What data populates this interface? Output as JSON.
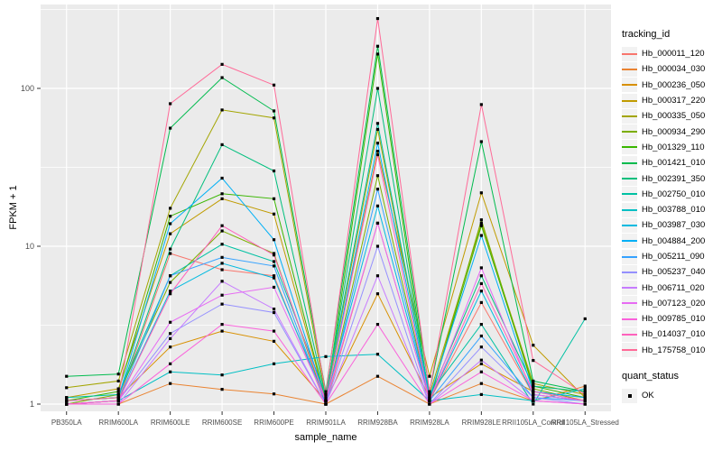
{
  "figure": {
    "background": "#FFFFFF",
    "panel_background": "#EBEBEB",
    "gridline_color": "#FFFFFF",
    "axis_text_color": "#4D4D4D",
    "tick_color": "#333333",
    "point_color": "#000000"
  },
  "axes": {
    "x_title": "sample_name",
    "y_title": "FPKM + 1",
    "y_tick_labels": [
      "1",
      "10",
      "100"
    ]
  },
  "legend": {
    "tracking_title": "tracking_id",
    "quant_title": "quant_status",
    "quant_items": [
      {
        "label": "OK"
      }
    ]
  },
  "chart_data": {
    "type": "line",
    "title": "",
    "xlabel": "sample_name",
    "ylabel": "FPKM + 1",
    "y_scale": "log10",
    "y_ticks": [
      1,
      10,
      100
    ],
    "y_minor_ticks": [
      3.1623,
      31.623,
      316.23
    ],
    "ylim": [
      1,
      339
    ],
    "grid": true,
    "legend_position": "right",
    "point_shape": "black-square",
    "categories": [
      "PB350LA",
      "RRIM600LA",
      "RRIM600LE",
      "RRIM600SE",
      "RRIM600PE",
      "RRIM901LA",
      "RRIM928BA",
      "RRIM928LA",
      "RRIM928LE",
      "RRII105LA_Control",
      "RRII105LA_Stressed"
    ],
    "series": [
      {
        "name": "Hb_000011_120",
        "color": "#F8766D",
        "values": [
          1.0,
          1.05,
          9.0,
          7.1,
          6.5,
          1.0,
          14,
          1.05,
          4.4,
          1.15,
          1.05
        ]
      },
      {
        "name": "Hb_000034_030",
        "color": "#EA8331",
        "values": [
          1.0,
          1.0,
          1.35,
          1.24,
          1.16,
          1.0,
          1.5,
          1.0,
          1.35,
          1.05,
          1.3
        ]
      },
      {
        "name": "Hb_000236_050",
        "color": "#D89000",
        "values": [
          1.05,
          1.1,
          2.3,
          2.9,
          2.5,
          1.05,
          5.0,
          1.1,
          1.8,
          1.2,
          1.1
        ]
      },
      {
        "name": "Hb_000317_220",
        "color": "#C09B00",
        "values": [
          1.1,
          1.25,
          12.0,
          20.0,
          16.0,
          1.05,
          40,
          1.5,
          21.8,
          2.36,
          1.1
        ]
      },
      {
        "name": "Hb_000335_050",
        "color": "#A3A500",
        "values": [
          1.27,
          1.4,
          17.4,
          73,
          65,
          1.1,
          55,
          1.15,
          14.0,
          1.35,
          1.15
        ]
      },
      {
        "name": "Hb_000934_290",
        "color": "#7CAE00",
        "values": [
          1.0,
          1.15,
          5.9,
          12.5,
          9.0,
          1.0,
          28,
          1.05,
          14.7,
          1.25,
          1.05
        ]
      },
      {
        "name": "Hb_001329_110",
        "color": "#39B600",
        "values": [
          1.05,
          1.2,
          15.5,
          21.5,
          20.0,
          1.05,
          165,
          1.05,
          13.5,
          1.3,
          1.1
        ]
      },
      {
        "name": "Hb_001421_010",
        "color": "#00BB4E",
        "values": [
          1.5,
          1.55,
          56,
          117,
          72,
          1.2,
          185,
          1.2,
          46,
          1.4,
          1.2
        ]
      },
      {
        "name": "Hb_002391_350",
        "color": "#00BF7D",
        "values": [
          1.05,
          1.1,
          9.6,
          44,
          30,
          1.1,
          100,
          1.1,
          6.5,
          1.3,
          1.2
        ]
      },
      {
        "name": "Hb_002750_010",
        "color": "#00C1A3",
        "values": [
          1.1,
          1.15,
          6.5,
          10.3,
          8.0,
          1.15,
          60,
          1.15,
          3.2,
          1.0,
          3.47
        ]
      },
      {
        "name": "Hb_003788_010",
        "color": "#00BFC4",
        "values": [
          1.0,
          1.05,
          1.6,
          1.53,
          1.8,
          2.0,
          2.07,
          1.05,
          1.15,
          1.05,
          1.25
        ]
      },
      {
        "name": "Hb_003987_030",
        "color": "#00BAE0",
        "values": [
          1.0,
          1.05,
          5.2,
          7.8,
          6.3,
          1.05,
          18,
          1.05,
          5.2,
          1.15,
          1.05
        ]
      },
      {
        "name": "Hb_004884_200",
        "color": "#00B0F6",
        "values": [
          1.05,
          1.1,
          13.9,
          27,
          11.0,
          1.05,
          45,
          1.1,
          11.7,
          1.2,
          1.1
        ]
      },
      {
        "name": "Hb_005211_090",
        "color": "#35A2FF",
        "values": [
          1.0,
          1.05,
          6.5,
          8.5,
          7.5,
          1.0,
          23,
          1.05,
          2.7,
          1.1,
          1.05
        ]
      },
      {
        "name": "Hb_005237_040",
        "color": "#9590FF",
        "values": [
          1.0,
          1.05,
          2.8,
          4.3,
          3.8,
          1.0,
          10,
          1.0,
          2.3,
          1.1,
          1.0
        ]
      },
      {
        "name": "Hb_006711_020",
        "color": "#C77CFF",
        "values": [
          1.0,
          1.0,
          2.6,
          6.0,
          4.0,
          1.0,
          6.5,
          1.0,
          1.9,
          1.05,
          1.0
        ]
      },
      {
        "name": "Hb_007123_020",
        "color": "#E76BF3",
        "values": [
          1.0,
          1.05,
          3.3,
          4.9,
          5.5,
          1.05,
          14,
          1.05,
          7.3,
          1.15,
          1.05
        ]
      },
      {
        "name": "Hb_009785_010",
        "color": "#FA62DB",
        "values": [
          1.0,
          1.0,
          1.8,
          3.2,
          2.9,
          1.0,
          3.2,
          1.0,
          1.6,
          1.05,
          1.0
        ]
      },
      {
        "name": "Hb_014037_010",
        "color": "#FF62BC",
        "values": [
          1.0,
          1.05,
          5.0,
          13.5,
          8.8,
          1.05,
          38,
          1.05,
          5.8,
          1.2,
          1.05
        ]
      },
      {
        "name": "Hb_175758_010",
        "color": "#FF6A98",
        "values": [
          1.05,
          1.1,
          80,
          142,
          105,
          1.15,
          277,
          1.2,
          79,
          1.89,
          1.15
        ]
      }
    ]
  }
}
